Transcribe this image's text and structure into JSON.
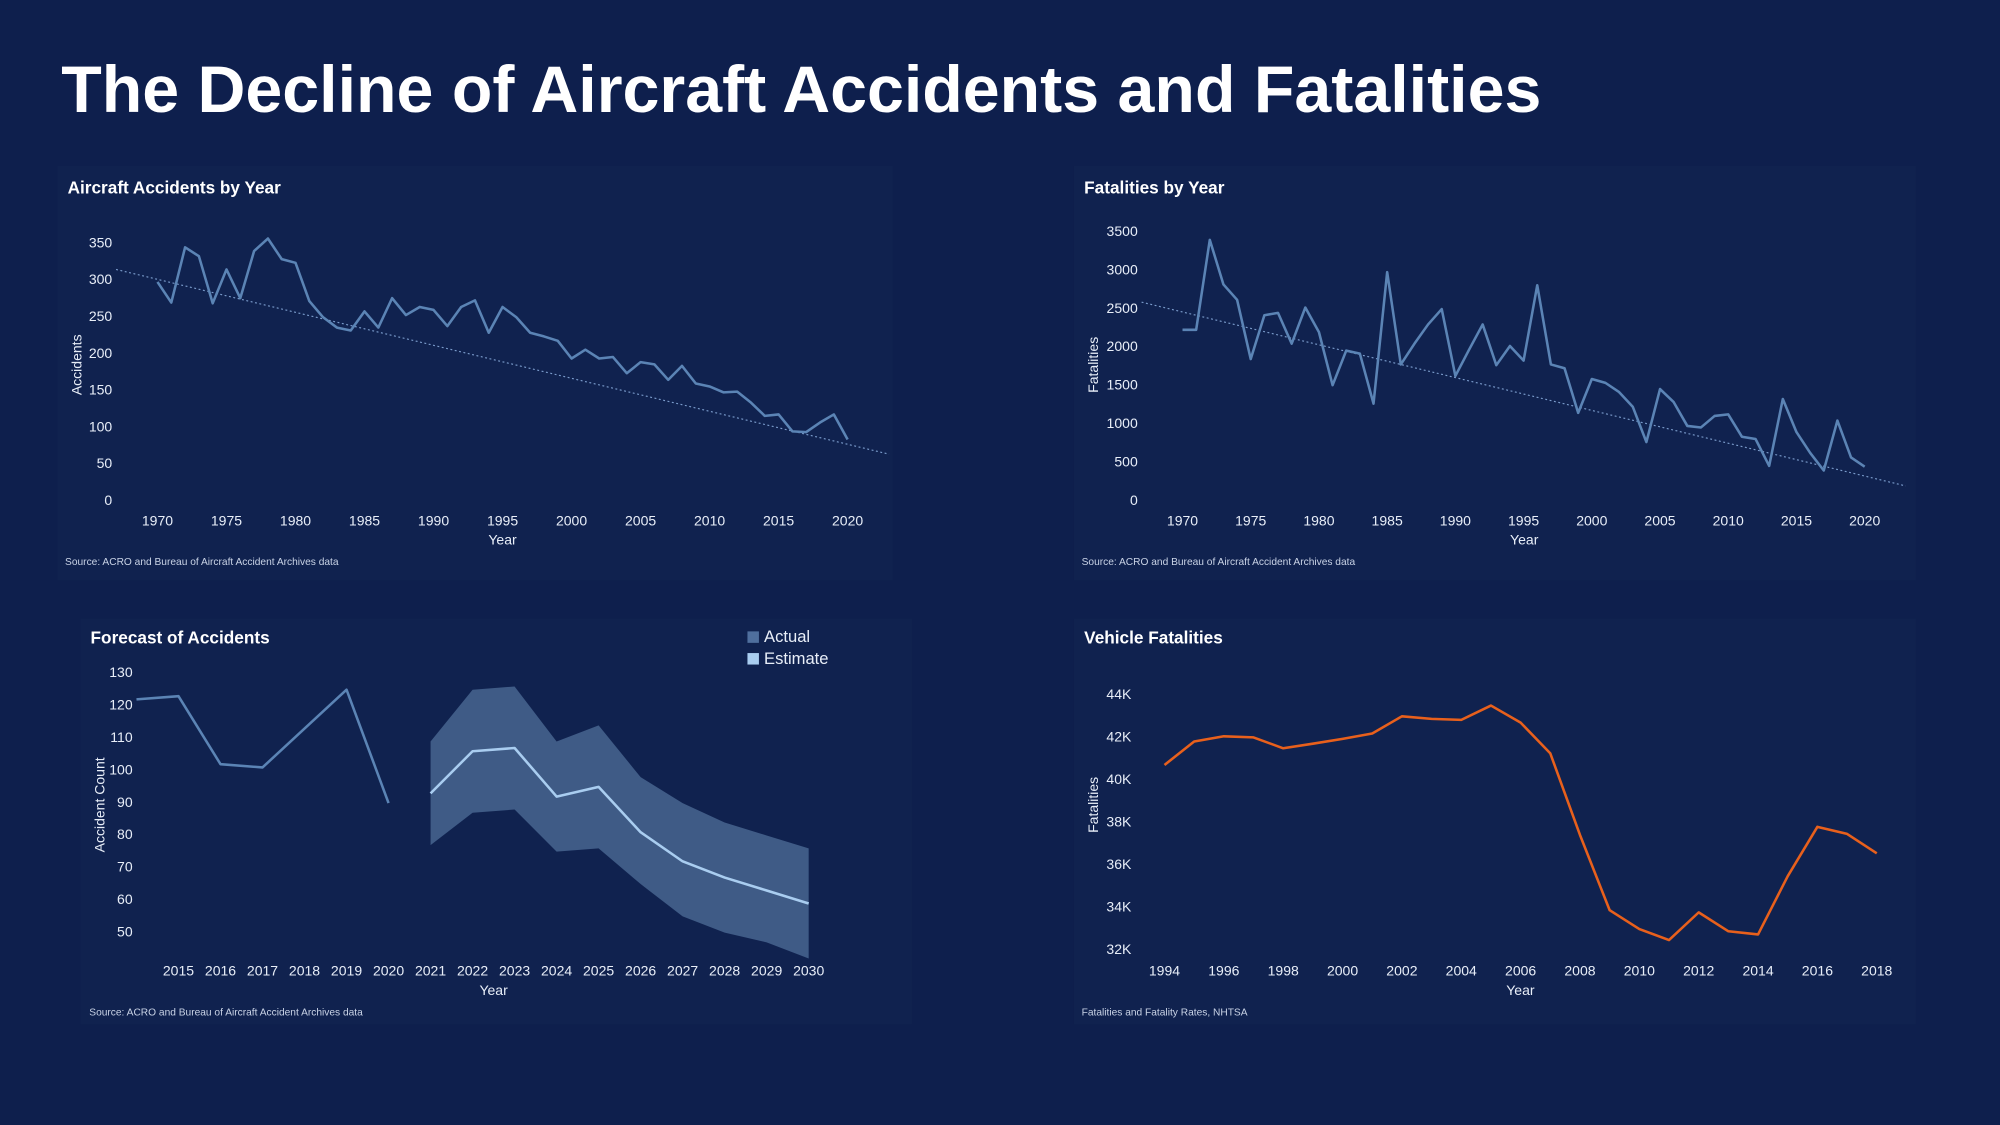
{
  "title": "The Decline of Aircraft Accidents and Fatalities",
  "chart_data": [
    {
      "type": "line",
      "title": "Aircraft Accidents by Year",
      "x_label": "Year",
      "y_label": "Accidents",
      "source": "Source: ACRO and Bureau of Aircraft Accident Archives data",
      "color": "#5b84b5",
      "x": [
        1970,
        1971,
        1972,
        1973,
        1974,
        1975,
        1976,
        1977,
        1978,
        1979,
        1980,
        1981,
        1982,
        1983,
        1984,
        1985,
        1986,
        1987,
        1988,
        1989,
        1990,
        1991,
        1992,
        1993,
        1994,
        1995,
        1996,
        1997,
        1998,
        1999,
        2000,
        2001,
        2002,
        2003,
        2004,
        2005,
        2006,
        2007,
        2008,
        2009,
        2010,
        2011,
        2012,
        2013,
        2014,
        2015,
        2016,
        2017,
        2018,
        2019,
        2020
      ],
      "values": [
        298,
        270,
        345,
        333,
        269,
        315,
        276,
        340,
        357,
        329,
        324,
        272,
        250,
        236,
        232,
        258,
        236,
        276,
        253,
        264,
        260,
        238,
        264,
        273,
        229,
        264,
        250,
        229,
        224,
        218,
        194,
        206,
        194,
        196,
        174,
        189,
        186,
        165,
        184,
        160,
        156,
        148,
        149,
        134,
        116,
        118,
        95,
        94,
        107,
        118,
        84
      ],
      "trend": {
        "x": [
          1967,
          2023
        ],
        "values": [
          315,
          64
        ]
      },
      "xlim": [
        1967,
        2023
      ],
      "xticks": [
        1970,
        1975,
        1980,
        1985,
        1990,
        1995,
        2000,
        2005,
        2010,
        2015,
        2020
      ],
      "ylim": [
        0,
        370
      ],
      "yticks": [
        0,
        50,
        100,
        150,
        200,
        250,
        300,
        350
      ]
    },
    {
      "type": "line",
      "title": "Fatalities by Year",
      "x_label": "Year",
      "y_label": "Fatalities",
      "source": "Source: ACRO and Bureau of Aircraft Accident Archives data",
      "color": "#5b84b5",
      "x": [
        1970,
        1971,
        1972,
        1973,
        1974,
        1975,
        1976,
        1977,
        1978,
        1979,
        1980,
        1981,
        1982,
        1983,
        1984,
        1985,
        1986,
        1987,
        1988,
        1989,
        1990,
        1991,
        1992,
        1993,
        1994,
        1995,
        1996,
        1997,
        1998,
        1999,
        2000,
        2001,
        2002,
        2003,
        2004,
        2005,
        2006,
        2007,
        2008,
        2009,
        2010,
        2011,
        2012,
        2013,
        2014,
        2015,
        2016,
        2017,
        2018,
        2019,
        2020
      ],
      "values": [
        2230,
        2230,
        3400,
        2820,
        2620,
        1850,
        2420,
        2450,
        2050,
        2520,
        2200,
        1510,
        1960,
        1920,
        1270,
        2980,
        1780,
        2050,
        2300,
        2500,
        1630,
        1970,
        2300,
        1770,
        2020,
        1830,
        2810,
        1780,
        1730,
        1150,
        1590,
        1540,
        1420,
        1230,
        770,
        1460,
        1290,
        980,
        960,
        1110,
        1130,
        840,
        810,
        460,
        1330,
        900,
        630,
        400,
        1050,
        570,
        450
      ],
      "trend": {
        "x": [
          1967,
          2023
        ],
        "values": [
          2590,
          200
        ]
      },
      "xlim": [
        1967,
        2023
      ],
      "xticks": [
        1970,
        1975,
        1980,
        1985,
        1990,
        1995,
        2000,
        2005,
        2010,
        2015,
        2020
      ],
      "ylim": [
        0,
        3600
      ],
      "yticks": [
        0,
        500,
        1000,
        1500,
        2000,
        2500,
        3000,
        3500
      ]
    },
    {
      "type": "line",
      "title": "Forecast of Accidents",
      "x_label": "Year",
      "y_label": "Accident Count",
      "source": "Source: ACRO and Bureau of Aircraft Accident Archives data",
      "legend": "top-right",
      "series": [
        {
          "name": "Actual",
          "color": "#5b84b5",
          "x": [
            2014,
            2015,
            2016,
            2017,
            2018,
            2019,
            2020
          ],
          "values": [
            122,
            123,
            102,
            101,
            113,
            125,
            90
          ]
        },
        {
          "name": "Estimate",
          "color": "#a9cdf0",
          "band_color": "#3f5b86",
          "x": [
            2021,
            2022,
            2023,
            2024,
            2025,
            2026,
            2027,
            2028,
            2029,
            2030
          ],
          "values": [
            93,
            106,
            107,
            92,
            95,
            81,
            72,
            67,
            63,
            59
          ],
          "upper": [
            109,
            125,
            126,
            109,
            114,
            98,
            90,
            84,
            80,
            76
          ],
          "lower": [
            77,
            87,
            88,
            75,
            76,
            65,
            55,
            50,
            47,
            42
          ]
        }
      ],
      "xlim": [
        2014,
        2030
      ],
      "xticks": [
        2015,
        2016,
        2017,
        2018,
        2019,
        2020,
        2021,
        2022,
        2023,
        2024,
        2025,
        2026,
        2027,
        2028,
        2029,
        2030
      ],
      "ylim": [
        42,
        133
      ],
      "yticks": [
        50,
        60,
        70,
        80,
        90,
        100,
        110,
        120,
        130
      ]
    },
    {
      "type": "line",
      "title": "Vehicle Fatalities",
      "x_label": "Year",
      "y_label": "Fatalities",
      "source": "Fatalities and Fatality Rates, NHTSA",
      "color": "#e8601c",
      "x": [
        1994,
        1995,
        1996,
        1997,
        1998,
        1999,
        2000,
        2001,
        2002,
        2003,
        2004,
        2005,
        2006,
        2007,
        2008,
        2009,
        2010,
        2011,
        2012,
        2013,
        2014,
        2015,
        2016,
        2017,
        2018
      ],
      "values": [
        40716,
        41817,
        42065,
        42013,
        41501,
        41717,
        41945,
        42196,
        43005,
        42884,
        42836,
        43510,
        42708,
        41259,
        37423,
        33883,
        32999,
        32479,
        33782,
        32893,
        32744,
        35484,
        37806,
        37473,
        36560
      ],
      "xlim": [
        1993.4,
        2018.8
      ],
      "xticks": [
        1994,
        1996,
        1998,
        2000,
        2002,
        2004,
        2006,
        2008,
        2010,
        2012,
        2014,
        2016,
        2018
      ],
      "ylim": [
        31700,
        44900
      ],
      "yticks": [
        {
          "value": 32000,
          "label": "32K"
        },
        {
          "value": 34000,
          "label": "34K"
        },
        {
          "value": 36000,
          "label": "36K"
        },
        {
          "value": 38000,
          "label": "38K"
        },
        {
          "value": 40000,
          "label": "40K"
        },
        {
          "value": 42000,
          "label": "42K"
        },
        {
          "value": 44000,
          "label": "44K"
        }
      ]
    }
  ]
}
